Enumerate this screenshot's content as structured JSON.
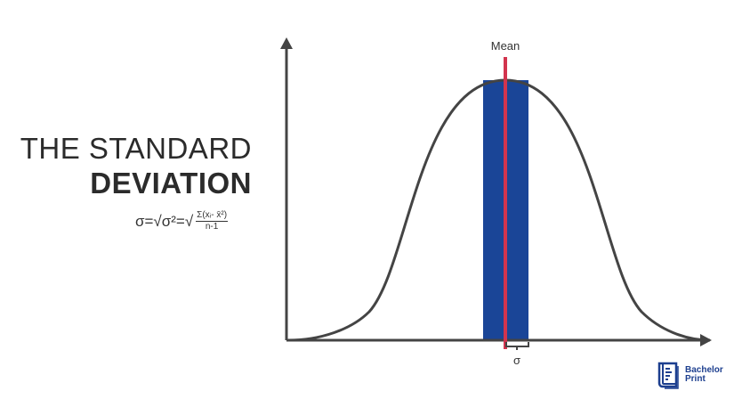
{
  "title": {
    "line1": "THE STANDARD",
    "line2": "DEVIATION"
  },
  "formula": {
    "lhs": "σ=√σ²=√",
    "numerator": "Σ(xᵢ- x̄²)",
    "denominator": "n-1"
  },
  "diagram": {
    "mean_label": "Mean",
    "sigma_label": "σ",
    "band_color": "#1a4597",
    "mean_line_color": "#d2344e",
    "curve_color": "#444444",
    "axis_color": "#444444"
  },
  "logo": {
    "line1": "Bachelor",
    "line2": "Print",
    "color": "#1d3f8f",
    "icon": "book-icon"
  }
}
